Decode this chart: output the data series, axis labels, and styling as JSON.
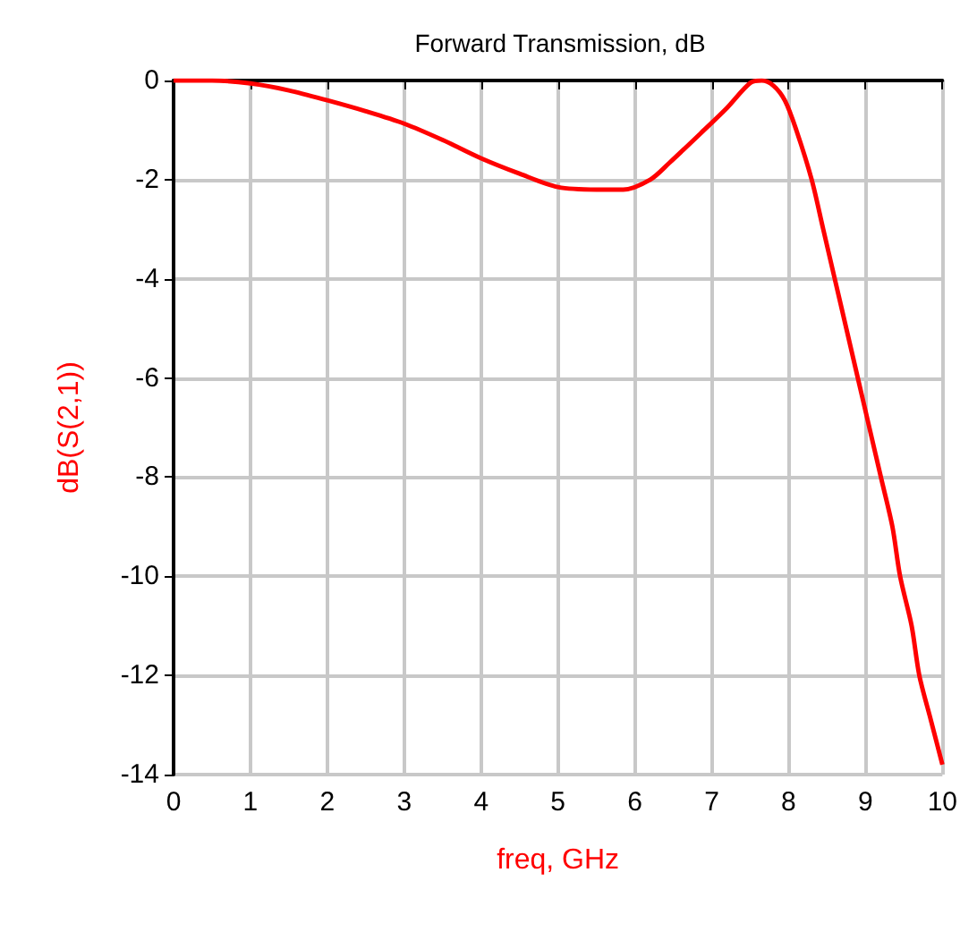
{
  "chart_data": {
    "type": "line",
    "title": "Forward Transmission, dB",
    "xlabel": "freq, GHz",
    "ylabel": "dB(S(2,1))",
    "series": [
      {
        "color": "#ff0000",
        "x": [
          0,
          0.5,
          1,
          1.5,
          2,
          2.5,
          3,
          3.5,
          4,
          4.5,
          5,
          5.5,
          5.85,
          6.2,
          6.45,
          6.9,
          7.2,
          7.5,
          7.65,
          7.8,
          7.95,
          8.1,
          8.3,
          8.45,
          8.6,
          8.75,
          8.9,
          9.05,
          9.2,
          9.35,
          9.45,
          9.6,
          9.7,
          9.85,
          10
        ],
        "values": [
          0,
          0,
          -0.06,
          -0.2,
          -0.4,
          -0.62,
          -0.87,
          -1.2,
          -1.57,
          -1.88,
          -2.15,
          -2.2,
          -2.2,
          -2.0,
          -1.66,
          -1.0,
          -0.55,
          -0.05,
          0,
          -0.1,
          -0.4,
          -1.0,
          -2,
          -3,
          -4,
          -5,
          -6,
          -7,
          -8,
          -9,
          -10,
          -11,
          -12,
          -12.9,
          -13.8
        ]
      }
    ],
    "xlim": [
      0,
      10
    ],
    "xticks": [
      0,
      1,
      2,
      3,
      4,
      5,
      6,
      7,
      8,
      9,
      10
    ],
    "ylim": [
      -14,
      0
    ],
    "yticks": [
      -14,
      -12,
      -10,
      -8,
      -6,
      -4,
      -2,
      0
    ],
    "grid": true,
    "marker": "none",
    "line_style": "solid"
  }
}
